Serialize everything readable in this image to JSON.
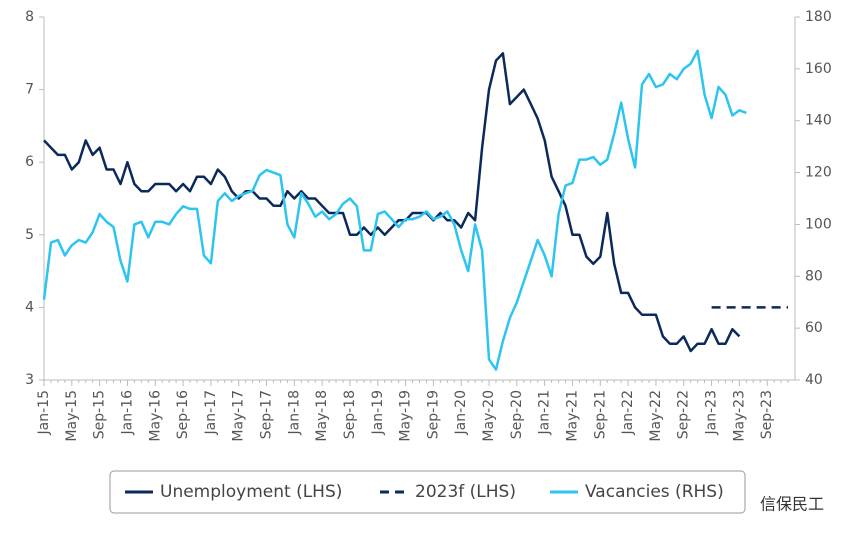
{
  "chart_data": {
    "type": "line",
    "categories": [
      "Jan-15",
      null,
      null,
      null,
      "May-15",
      null,
      null,
      null,
      "Sep-15",
      null,
      null,
      null,
      "Jan-16",
      null,
      null,
      null,
      "May-16",
      null,
      null,
      null,
      "Sep-16",
      null,
      null,
      null,
      "Jan-17",
      null,
      null,
      null,
      "May-17",
      null,
      null,
      null,
      "Sep-17",
      null,
      null,
      null,
      "Jan-18",
      null,
      null,
      null,
      "May-18",
      null,
      null,
      null,
      "Sep-18",
      null,
      null,
      null,
      "Jan-19",
      null,
      null,
      null,
      "May-19",
      null,
      null,
      null,
      "Sep-19",
      null,
      null,
      null,
      "Jan-20",
      null,
      null,
      null,
      "May-20",
      null,
      null,
      null,
      "Sep-20",
      null,
      null,
      null,
      "Jan-21",
      null,
      null,
      null,
      "May-21",
      null,
      null,
      null,
      "Sep-21",
      null,
      null,
      null,
      "Jan-22",
      null,
      null,
      null,
      "May-22",
      null,
      null,
      null,
      "Sep-22",
      null,
      null,
      null,
      "Jan-23",
      null,
      null,
      null,
      "May-23",
      null,
      null,
      null,
      "Sep-23",
      null,
      null,
      null
    ],
    "series": [
      {
        "name": "Unemployment (LHS)",
        "color": "#0b2a5b",
        "dashed": false,
        "axis": "y",
        "values": [
          6.3,
          6.2,
          6.1,
          6.1,
          5.9,
          6.0,
          6.3,
          6.1,
          6.2,
          5.9,
          5.9,
          5.7,
          6.0,
          5.7,
          5.6,
          5.6,
          5.7,
          5.7,
          5.7,
          5.6,
          5.7,
          5.6,
          5.8,
          5.8,
          5.7,
          5.9,
          5.8,
          5.6,
          5.5,
          5.6,
          5.6,
          5.5,
          5.5,
          5.4,
          5.4,
          5.6,
          5.5,
          5.6,
          5.5,
          5.5,
          5.4,
          5.3,
          5.3,
          5.3,
          5.0,
          5.0,
          5.1,
          5.0,
          5.1,
          5.0,
          5.1,
          5.2,
          5.2,
          5.3,
          5.3,
          5.3,
          5.2,
          5.3,
          5.2,
          5.2,
          5.1,
          5.3,
          5.2,
          6.2,
          7.0,
          7.4,
          7.5,
          6.8,
          6.9,
          7.0,
          6.8,
          6.6,
          6.3,
          5.8,
          5.6,
          5.4,
          5.0,
          5.0,
          4.7,
          4.6,
          4.7,
          5.3,
          4.6,
          4.2,
          4.2,
          4.0,
          3.9,
          3.9,
          3.9,
          3.6,
          3.5,
          3.5,
          3.6,
          3.4,
          3.5,
          3.5,
          3.7,
          3.5,
          3.5,
          3.7,
          3.6,
          null,
          null,
          null,
          null,
          null,
          null,
          null
        ]
      },
      {
        "name": "2023f (LHS)",
        "color": "#0b2a5b",
        "dashed": true,
        "axis": "y",
        "values": [
          null,
          null,
          null,
          null,
          null,
          null,
          null,
          null,
          null,
          null,
          null,
          null,
          null,
          null,
          null,
          null,
          null,
          null,
          null,
          null,
          null,
          null,
          null,
          null,
          null,
          null,
          null,
          null,
          null,
          null,
          null,
          null,
          null,
          null,
          null,
          null,
          null,
          null,
          null,
          null,
          null,
          null,
          null,
          null,
          null,
          null,
          null,
          null,
          null,
          null,
          null,
          null,
          null,
          null,
          null,
          null,
          null,
          null,
          null,
          null,
          null,
          null,
          null,
          null,
          null,
          null,
          null,
          null,
          null,
          null,
          null,
          null,
          null,
          null,
          null,
          null,
          null,
          null,
          null,
          null,
          null,
          null,
          null,
          null,
          null,
          null,
          null,
          null,
          null,
          null,
          null,
          null,
          null,
          null,
          null,
          null,
          4.0,
          4.0,
          4.0,
          4.0,
          4.0,
          4.0,
          4.0,
          4.0,
          4.0,
          4.0,
          4.0,
          4.0
        ]
      },
      {
        "name": "Vacancies (RHS)",
        "color": "#2cc4f0",
        "dashed": false,
        "axis": "y2",
        "values": [
          71,
          93,
          94,
          88,
          92,
          94,
          93,
          97,
          104,
          101,
          99,
          86,
          78,
          100,
          101,
          95,
          101,
          101,
          100,
          104,
          107,
          106,
          106,
          88,
          85,
          109,
          112,
          109,
          111,
          112,
          113,
          119,
          121,
          120,
          119,
          100,
          95,
          112,
          108,
          103,
          105,
          102,
          104,
          108,
          110,
          107,
          90,
          90,
          104,
          105,
          102,
          99,
          102,
          102,
          103,
          105,
          102,
          103,
          105,
          100,
          90,
          82,
          100,
          90,
          48,
          44,
          55,
          64,
          70,
          78,
          86,
          94,
          88,
          80,
          104,
          115,
          116,
          125,
          125,
          126,
          123,
          125,
          135,
          147,
          133,
          122,
          154,
          158,
          153,
          154,
          158,
          156,
          160,
          162,
          167,
          150,
          141,
          153,
          150,
          142,
          144,
          143,
          null,
          null,
          null,
          null,
          null,
          null
        ]
      }
    ],
    "ylim": [
      3,
      8
    ],
    "yticks": [
      3,
      4,
      5,
      6,
      7,
      8
    ],
    "y2lim": [
      40,
      180
    ],
    "y2ticks": [
      40,
      60,
      80,
      100,
      120,
      140,
      160,
      180
    ],
    "legend": "bottom",
    "watermark": "信保民工"
  }
}
